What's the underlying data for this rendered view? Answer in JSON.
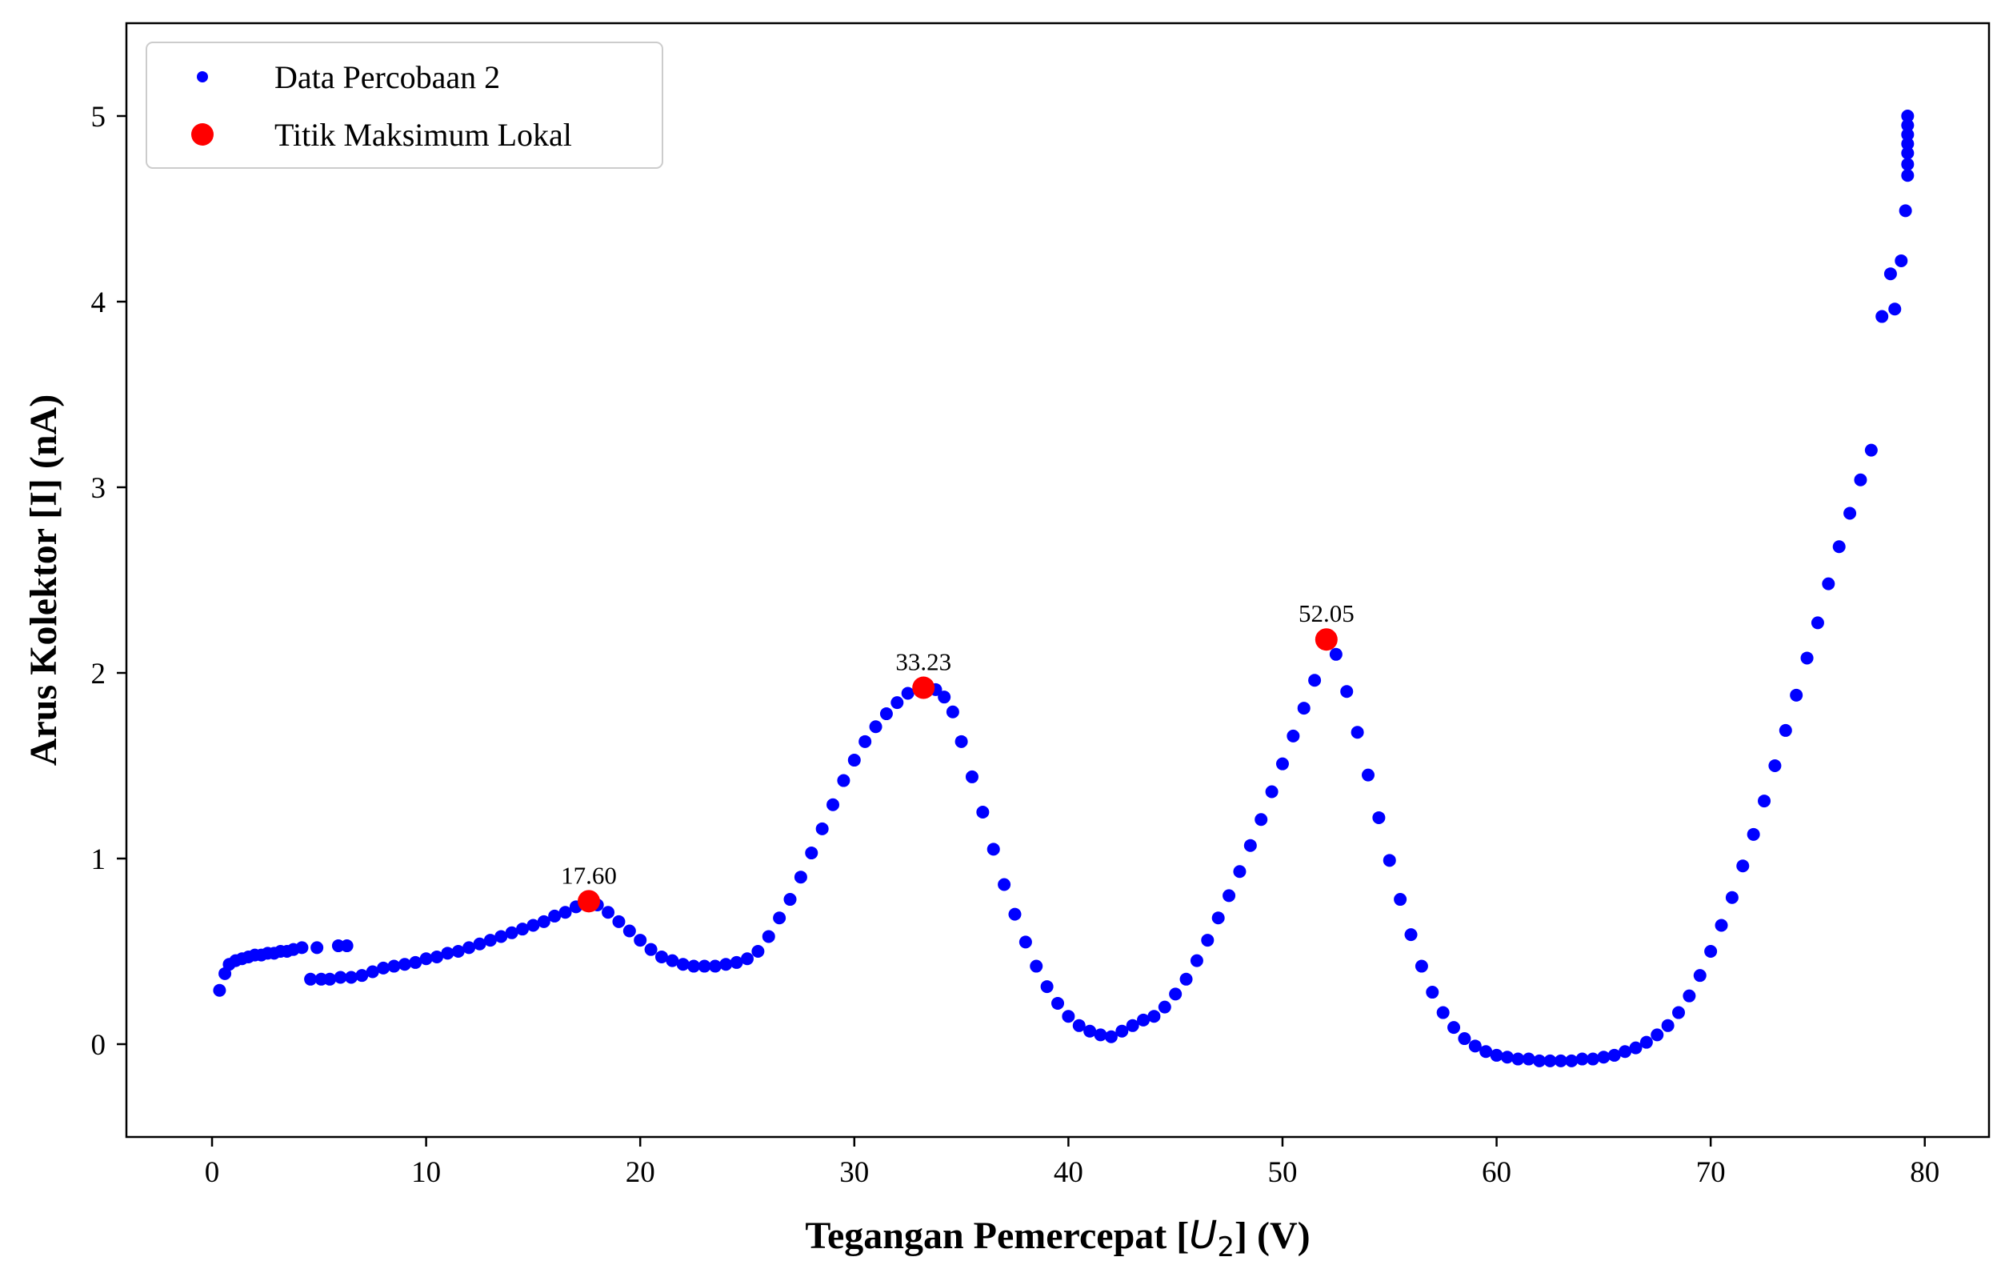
{
  "chart_data": {
    "type": "scatter",
    "title": "",
    "xlabel": "Tegangan Pemercepat [",
    "xlabel_var": "U",
    "xlabel_sub": "2",
    "xlabel_suffix": "] (V)",
    "ylabel": "Arus Kolektor [I] (nA)",
    "xlim": [
      -4,
      83
    ],
    "ylim": [
      -0.5,
      5.5
    ],
    "xticks": [
      0,
      10,
      20,
      30,
      40,
      50,
      60,
      70,
      80
    ],
    "yticks": [
      0,
      1,
      2,
      3,
      4,
      5
    ],
    "grid": false,
    "legend_position": "top-left",
    "series": [
      {
        "name": "Data Percobaan 2",
        "color": "#0000ff",
        "marker": "dot",
        "points": [
          [
            0.35,
            0.29
          ],
          [
            0.6,
            0.38
          ],
          [
            0.8,
            0.43
          ],
          [
            1.1,
            0.45
          ],
          [
            1.4,
            0.46
          ],
          [
            1.7,
            0.47
          ],
          [
            2.0,
            0.48
          ],
          [
            2.3,
            0.48
          ],
          [
            2.6,
            0.49
          ],
          [
            2.9,
            0.49
          ],
          [
            3.2,
            0.5
          ],
          [
            3.5,
            0.5
          ],
          [
            3.8,
            0.51
          ],
          [
            4.2,
            0.52
          ],
          [
            4.6,
            0.35
          ],
          [
            4.9,
            0.52
          ],
          [
            5.1,
            0.35
          ],
          [
            5.5,
            0.35
          ],
          [
            5.9,
            0.53
          ],
          [
            6.0,
            0.36
          ],
          [
            6.3,
            0.53
          ],
          [
            6.5,
            0.36
          ],
          [
            7.0,
            0.37
          ],
          [
            7.5,
            0.39
          ],
          [
            8.0,
            0.41
          ],
          [
            8.5,
            0.42
          ],
          [
            9.0,
            0.43
          ],
          [
            9.5,
            0.44
          ],
          [
            10.0,
            0.46
          ],
          [
            10.5,
            0.47
          ],
          [
            11.0,
            0.49
          ],
          [
            11.5,
            0.5
          ],
          [
            12.0,
            0.52
          ],
          [
            12.5,
            0.54
          ],
          [
            13.0,
            0.56
          ],
          [
            13.5,
            0.58
          ],
          [
            14.0,
            0.6
          ],
          [
            14.5,
            0.62
          ],
          [
            15.0,
            0.64
          ],
          [
            15.5,
            0.66
          ],
          [
            16.0,
            0.69
          ],
          [
            16.5,
            0.71
          ],
          [
            17.0,
            0.74
          ],
          [
            17.6,
            0.77
          ],
          [
            18.0,
            0.75
          ],
          [
            18.5,
            0.71
          ],
          [
            19.0,
            0.66
          ],
          [
            19.5,
            0.61
          ],
          [
            20.0,
            0.56
          ],
          [
            20.5,
            0.51
          ],
          [
            21.0,
            0.47
          ],
          [
            21.5,
            0.45
          ],
          [
            22.0,
            0.43
          ],
          [
            22.5,
            0.42
          ],
          [
            23.0,
            0.42
          ],
          [
            23.5,
            0.42
          ],
          [
            24.0,
            0.43
          ],
          [
            24.5,
            0.44
          ],
          [
            25.0,
            0.46
          ],
          [
            25.5,
            0.5
          ],
          [
            26.0,
            0.58
          ],
          [
            26.5,
            0.68
          ],
          [
            27.0,
            0.78
          ],
          [
            27.5,
            0.9
          ],
          [
            28.0,
            1.03
          ],
          [
            28.5,
            1.16
          ],
          [
            29.0,
            1.29
          ],
          [
            29.5,
            1.42
          ],
          [
            30.0,
            1.53
          ],
          [
            30.5,
            1.63
          ],
          [
            31.0,
            1.71
          ],
          [
            31.5,
            1.78
          ],
          [
            32.0,
            1.84
          ],
          [
            32.5,
            1.89
          ],
          [
            33.23,
            1.92
          ],
          [
            33.8,
            1.91
          ],
          [
            34.2,
            1.87
          ],
          [
            34.6,
            1.79
          ],
          [
            35.0,
            1.63
          ],
          [
            35.5,
            1.44
          ],
          [
            36.0,
            1.25
          ],
          [
            36.5,
            1.05
          ],
          [
            37.0,
            0.86
          ],
          [
            37.5,
            0.7
          ],
          [
            38.0,
            0.55
          ],
          [
            38.5,
            0.42
          ],
          [
            39.0,
            0.31
          ],
          [
            39.5,
            0.22
          ],
          [
            40.0,
            0.15
          ],
          [
            40.5,
            0.1
          ],
          [
            41.0,
            0.07
          ],
          [
            41.5,
            0.05
          ],
          [
            42.0,
            0.04
          ],
          [
            42.5,
            0.07
          ],
          [
            43.0,
            0.1
          ],
          [
            43.5,
            0.13
          ],
          [
            44.0,
            0.15
          ],
          [
            44.5,
            0.2
          ],
          [
            45.0,
            0.27
          ],
          [
            45.5,
            0.35
          ],
          [
            46.0,
            0.45
          ],
          [
            46.5,
            0.56
          ],
          [
            47.0,
            0.68
          ],
          [
            47.5,
            0.8
          ],
          [
            48.0,
            0.93
          ],
          [
            48.5,
            1.07
          ],
          [
            49.0,
            1.21
          ],
          [
            49.5,
            1.36
          ],
          [
            50.0,
            1.51
          ],
          [
            50.5,
            1.66
          ],
          [
            51.0,
            1.81
          ],
          [
            51.5,
            1.96
          ],
          [
            52.05,
            2.18
          ],
          [
            52.5,
            2.1
          ],
          [
            53.0,
            1.9
          ],
          [
            53.5,
            1.68
          ],
          [
            54.0,
            1.45
          ],
          [
            54.5,
            1.22
          ],
          [
            55.0,
            0.99
          ],
          [
            55.5,
            0.78
          ],
          [
            56.0,
            0.59
          ],
          [
            56.5,
            0.42
          ],
          [
            57.0,
            0.28
          ],
          [
            57.5,
            0.17
          ],
          [
            58.0,
            0.09
          ],
          [
            58.5,
            0.03
          ],
          [
            59.0,
            -0.01
          ],
          [
            59.5,
            -0.04
          ],
          [
            60.0,
            -0.06
          ],
          [
            60.5,
            -0.07
          ],
          [
            61.0,
            -0.08
          ],
          [
            61.5,
            -0.08
          ],
          [
            62.0,
            -0.09
          ],
          [
            62.5,
            -0.09
          ],
          [
            63.0,
            -0.09
          ],
          [
            63.5,
            -0.09
          ],
          [
            64.0,
            -0.08
          ],
          [
            64.5,
            -0.08
          ],
          [
            65.0,
            -0.07
          ],
          [
            65.5,
            -0.06
          ],
          [
            66.0,
            -0.04
          ],
          [
            66.5,
            -0.02
          ],
          [
            67.0,
            0.01
          ],
          [
            67.5,
            0.05
          ],
          [
            68.0,
            0.1
          ],
          [
            68.5,
            0.17
          ],
          [
            69.0,
            0.26
          ],
          [
            69.5,
            0.37
          ],
          [
            70.0,
            0.5
          ],
          [
            70.5,
            0.64
          ],
          [
            71.0,
            0.79
          ],
          [
            71.5,
            0.96
          ],
          [
            72.0,
            1.13
          ],
          [
            72.5,
            1.31
          ],
          [
            73.0,
            1.5
          ],
          [
            73.5,
            1.69
          ],
          [
            74.0,
            1.88
          ],
          [
            74.5,
            2.08
          ],
          [
            75.0,
            2.27
          ],
          [
            75.5,
            2.48
          ],
          [
            76.0,
            2.68
          ],
          [
            76.5,
            2.86
          ],
          [
            77.0,
            3.04
          ],
          [
            77.5,
            3.2
          ],
          [
            78.0,
            3.92
          ],
          [
            78.4,
            4.15
          ],
          [
            78.6,
            3.96
          ],
          [
            78.9,
            4.22
          ],
          [
            79.1,
            4.49
          ],
          [
            79.2,
            4.68
          ],
          [
            79.2,
            4.74
          ],
          [
            79.2,
            4.8
          ],
          [
            79.2,
            4.85
          ],
          [
            79.2,
            4.9
          ],
          [
            79.2,
            4.95
          ],
          [
            79.2,
            5.0
          ]
        ]
      },
      {
        "name": "Titik Maksimum Lokal",
        "color": "#ff0000",
        "marker": "dot-large",
        "points": [
          [
            17.6,
            0.77
          ],
          [
            33.23,
            1.92
          ],
          [
            52.05,
            2.18
          ]
        ],
        "labels": [
          "17.60",
          "33.23",
          "52.05"
        ]
      }
    ]
  }
}
